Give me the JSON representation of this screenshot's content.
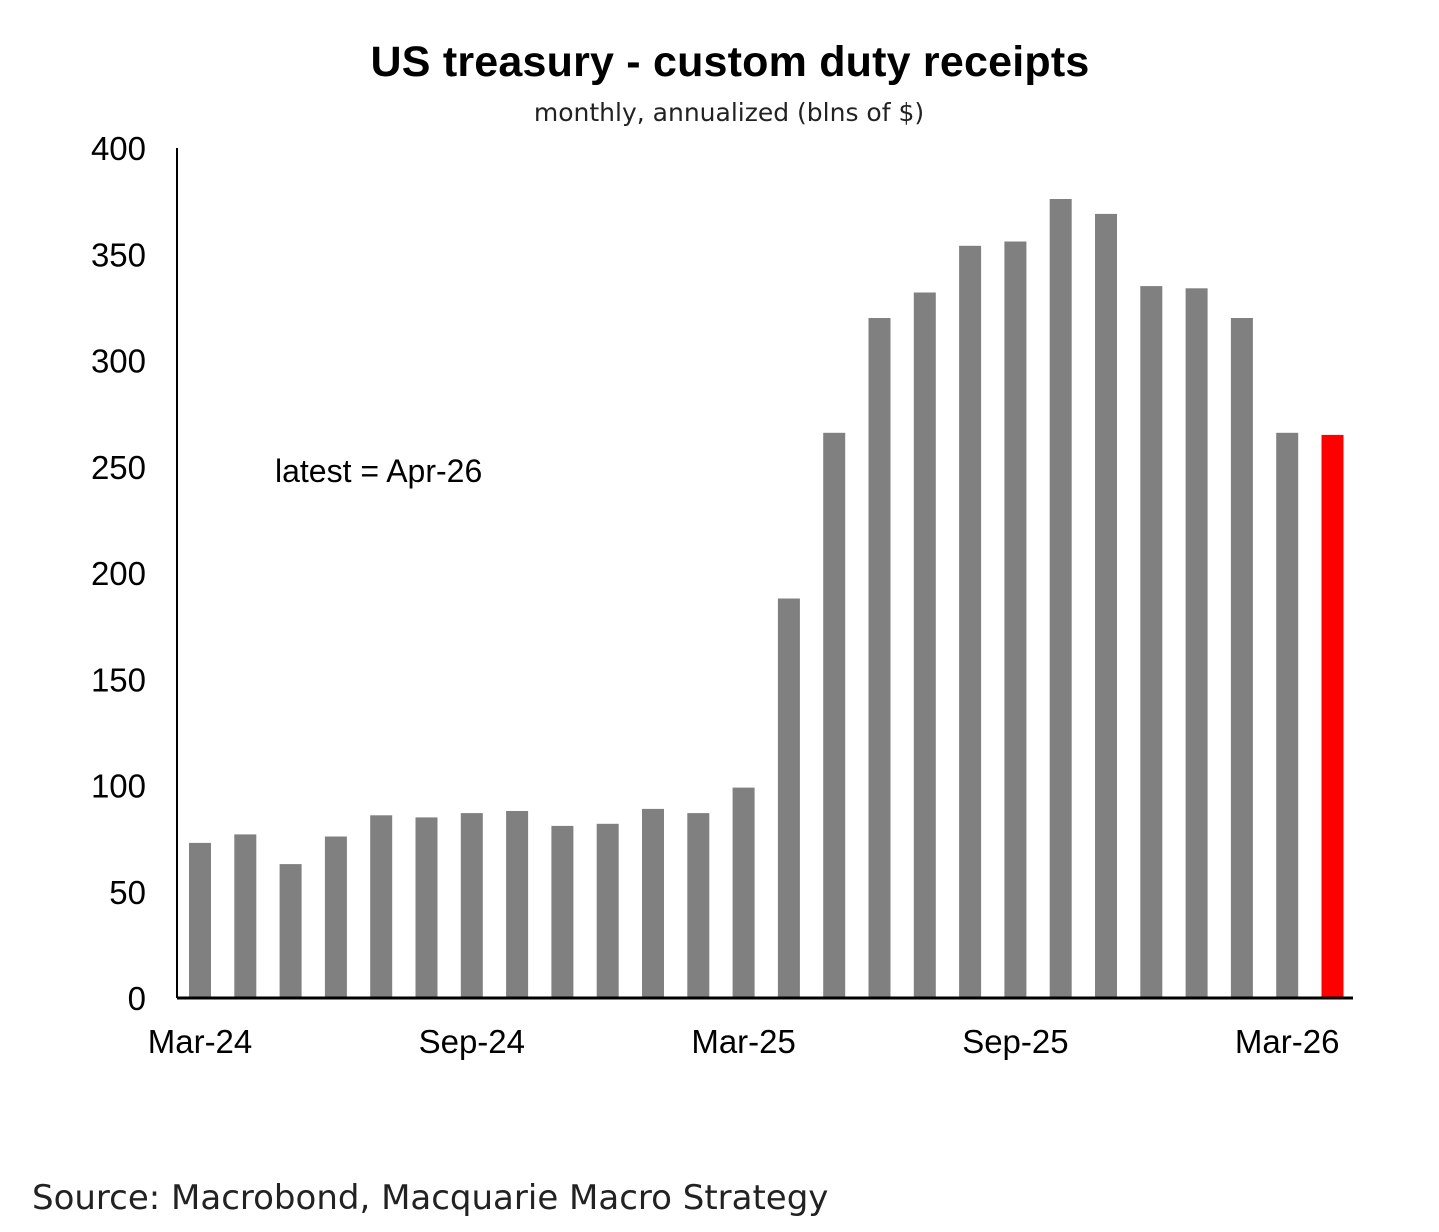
{
  "chart_data": {
    "type": "bar",
    "title": "US treasury - custom duty receipts",
    "subtitle": "monthly, annualized (blns of $)",
    "xlabel": "",
    "ylabel": "",
    "ylim": [
      0,
      400
    ],
    "yticks": [
      0,
      50,
      100,
      150,
      200,
      250,
      300,
      350,
      400
    ],
    "grid": false,
    "categories": [
      "Mar-24",
      "Apr-24",
      "May-24",
      "Jun-24",
      "Jul-24",
      "Aug-24",
      "Sep-24",
      "Oct-24",
      "Nov-24",
      "Dec-24",
      "Jan-25",
      "Feb-25",
      "Mar-25",
      "Apr-25",
      "May-25",
      "Jun-25",
      "Jul-25",
      "Aug-25",
      "Sep-25",
      "Oct-25",
      "Nov-25",
      "Dec-25",
      "Jan-26",
      "Feb-26",
      "Mar-26",
      "Apr-26"
    ],
    "x_tick_labels": [
      "Mar-24",
      "Sep-24",
      "Mar-25",
      "Sep-25",
      "Mar-26"
    ],
    "values": [
      73,
      77,
      63,
      76,
      86,
      85,
      87,
      88,
      81,
      82,
      89,
      87,
      99,
      188,
      266,
      320,
      332,
      354,
      356,
      376,
      369,
      335,
      334,
      320,
      266,
      265
    ],
    "colors": {
      "default": "#808080",
      "latest": "#ff0000",
      "axis": "#000000"
    },
    "highlight_category": "Apr-26",
    "annotation": "latest = Apr-26"
  },
  "source": "Source: Macrobond, Macquarie Macro Strategy"
}
